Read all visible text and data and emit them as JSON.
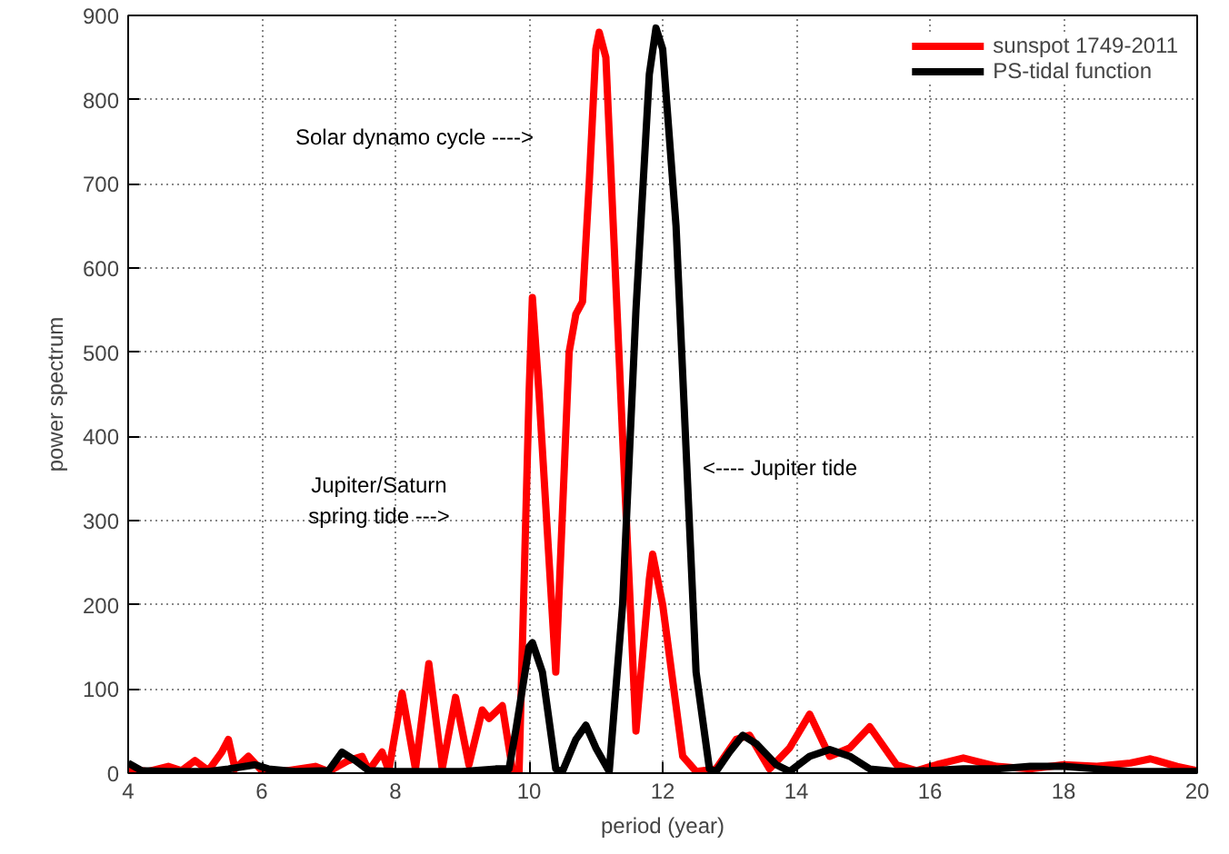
{
  "chart_data": {
    "type": "line",
    "xlabel": "period (year)",
    "ylabel": "power spectrum",
    "xlim": [
      4,
      20
    ],
    "ylim": [
      0,
      900
    ],
    "xticks": [
      4,
      6,
      8,
      10,
      12,
      14,
      16,
      18,
      20
    ],
    "yticks": [
      0,
      100,
      200,
      300,
      400,
      500,
      600,
      700,
      800,
      900
    ],
    "grid": true,
    "legend": "top right",
    "line_style": "solid",
    "series": [
      {
        "name": "sunspot 1749-2011",
        "color": "#ff0000",
        "x": [
          4.0,
          4.3,
          4.6,
          4.8,
          5.0,
          5.2,
          5.4,
          5.5,
          5.6,
          5.8,
          6.0,
          6.3,
          6.8,
          7.0,
          7.3,
          7.5,
          7.6,
          7.8,
          7.9,
          8.1,
          8.3,
          8.5,
          8.7,
          8.9,
          9.1,
          9.3,
          9.4,
          9.6,
          9.75,
          9.85,
          10.0,
          10.05,
          10.15,
          10.4,
          10.6,
          10.7,
          10.8,
          10.9,
          11.0,
          11.05,
          11.15,
          11.4,
          11.6,
          11.8,
          11.85,
          12.0,
          12.3,
          12.5,
          12.8,
          13.1,
          13.3,
          13.6,
          13.9,
          14.2,
          14.5,
          14.8,
          15.1,
          15.5,
          15.8,
          16.1,
          16.5,
          17.0,
          17.5,
          18.0,
          18.5,
          19.0,
          19.3,
          19.7,
          20.0
        ],
        "values": [
          5,
          2,
          8,
          3,
          15,
          3,
          25,
          40,
          5,
          20,
          3,
          2,
          8,
          2,
          15,
          20,
          3,
          25,
          3,
          95,
          5,
          130,
          5,
          90,
          10,
          75,
          65,
          80,
          5,
          0,
          450,
          565,
          450,
          120,
          500,
          545,
          560,
          700,
          860,
          880,
          850,
          400,
          50,
          230,
          260,
          200,
          20,
          2,
          5,
          40,
          45,
          5,
          30,
          70,
          20,
          30,
          55,
          10,
          3,
          10,
          18,
          8,
          5,
          10,
          8,
          12,
          17,
          8,
          3
        ]
      },
      {
        "name": "PS-tidal function",
        "color": "#000000",
        "x": [
          4.0,
          4.2,
          4.6,
          5.2,
          5.5,
          5.9,
          6.1,
          6.5,
          7.0,
          7.2,
          7.4,
          7.6,
          8.0,
          9.0,
          9.5,
          9.7,
          9.8,
          10.0,
          10.05,
          10.2,
          10.4,
          10.5,
          10.7,
          10.85,
          11.0,
          11.2,
          11.4,
          11.6,
          11.8,
          11.9,
          12.0,
          12.2,
          12.5,
          12.7,
          12.8,
          13.0,
          13.2,
          13.4,
          13.7,
          13.9,
          14.2,
          14.5,
          14.8,
          15.1,
          15.5,
          16.0,
          16.5,
          17.0,
          17.5,
          18.0,
          18.5,
          19.0,
          20.0
        ],
        "values": [
          12,
          3,
          2,
          2,
          5,
          10,
          5,
          2,
          3,
          25,
          15,
          3,
          2,
          2,
          5,
          5,
          50,
          150,
          155,
          120,
          5,
          2,
          40,
          57,
          30,
          2,
          200,
          550,
          830,
          885,
          860,
          650,
          120,
          5,
          2,
          25,
          45,
          35,
          10,
          2,
          20,
          28,
          20,
          5,
          2,
          3,
          5,
          5,
          8,
          8,
          5,
          2,
          2
        ]
      }
    ],
    "annotations": [
      "Solar dynamo cycle ---->",
      "Jupiter/Saturn\nspring tide --->",
      "<---- Jupiter tide"
    ]
  }
}
